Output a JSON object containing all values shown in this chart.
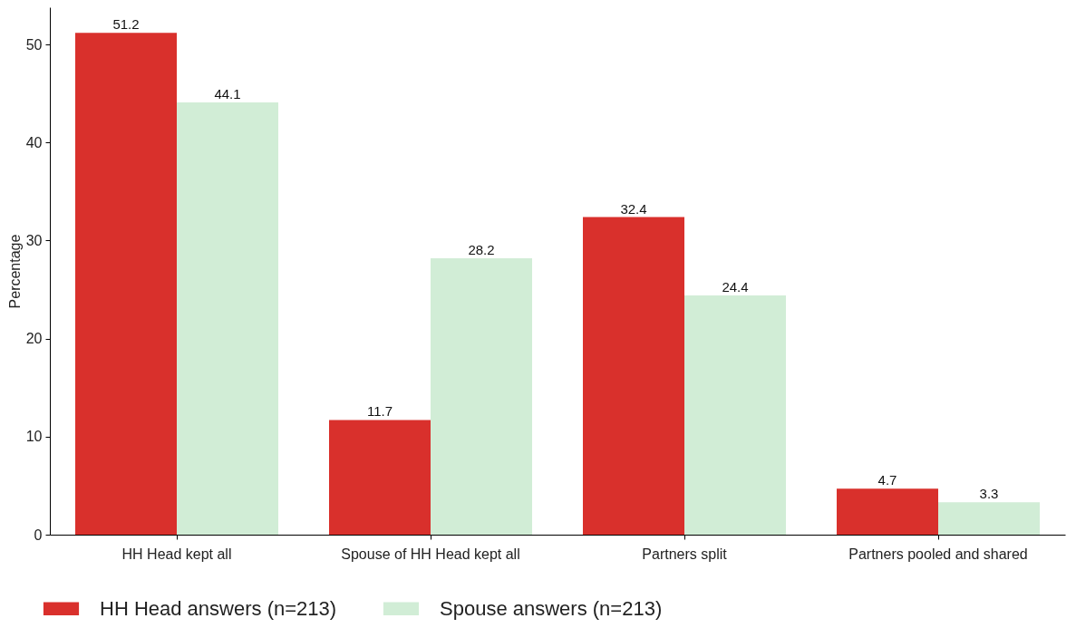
{
  "chart_data": {
    "type": "bar",
    "ylabel": "Percentage",
    "categories": [
      "HH Head kept all",
      "Spouse of HH Head kept all",
      "Partners split",
      "Partners pooled and shared"
    ],
    "series": [
      {
        "name": "HH Head answers (n=213)",
        "color": "#d9302c",
        "values": [
          51.2,
          11.7,
          32.4,
          4.7
        ]
      },
      {
        "name": "Spouse answers (n=213)",
        "color": "#d1edd6",
        "values": [
          44.1,
          28.2,
          24.4,
          3.3
        ]
      }
    ],
    "ylim": [
      0,
      53.8
    ],
    "yticks": [
      0,
      10,
      20,
      30,
      40,
      50
    ],
    "grid": false,
    "legend": "bottom",
    "data_labels": true
  }
}
